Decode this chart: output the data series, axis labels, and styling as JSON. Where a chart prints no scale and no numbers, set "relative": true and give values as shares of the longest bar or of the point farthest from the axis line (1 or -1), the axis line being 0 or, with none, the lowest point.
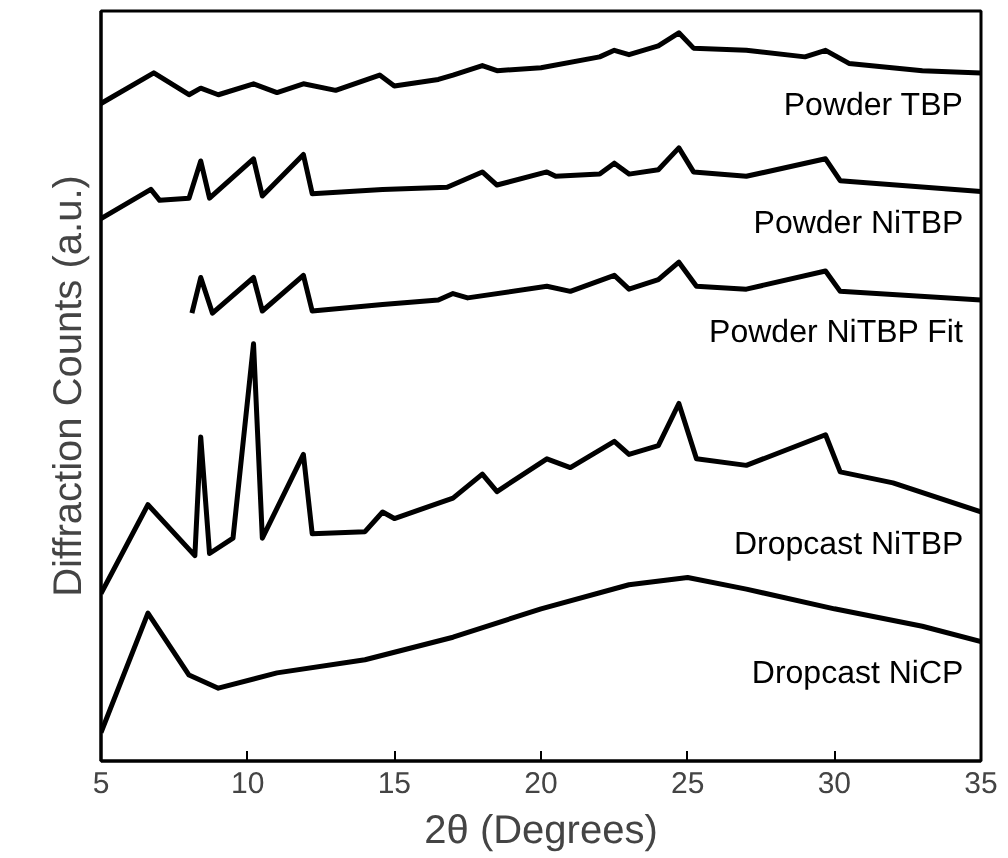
{
  "chart_data": {
    "type": "line",
    "relative": true,
    "xlabel": "2θ (Degrees)",
    "ylabel": "Diffraction Counts (a.u.)",
    "xlim": [
      5,
      35
    ],
    "xticks": [
      5,
      10,
      15,
      20,
      25,
      30,
      35
    ],
    "grid": false,
    "marker": "none",
    "line_style": "solid",
    "series": [
      {
        "name": "Powder TBP",
        "color": "#000000",
        "x": [
          5,
          6.8,
          8,
          8.4,
          9,
          10.2,
          11,
          11.9,
          13,
          14.5,
          15,
          16.5,
          17,
          18,
          18.5,
          20,
          22,
          22.5,
          23,
          24,
          24.7,
          25.2,
          27,
          29,
          29.7,
          30.5,
          33,
          35
        ],
        "values": [
          0.903,
          0.945,
          0.915,
          0.924,
          0.915,
          0.93,
          0.918,
          0.93,
          0.921,
          0.942,
          0.927,
          0.936,
          0.942,
          0.955,
          0.948,
          0.952,
          0.967,
          0.976,
          0.97,
          0.982,
          1.0,
          0.979,
          0.976,
          0.967,
          0.976,
          0.958,
          0.948,
          0.945
        ]
      },
      {
        "name": "Powder NiTBP",
        "color": "#000000",
        "x": [
          5,
          6.7,
          7,
          8,
          8.4,
          8.7,
          10.2,
          10.5,
          11.9,
          12.2,
          14.6,
          16.8,
          18,
          18.5,
          20.2,
          20.5,
          22,
          22.5,
          23,
          24,
          24.7,
          25.2,
          27,
          29.7,
          30.2,
          35
        ],
        "values": [
          0.745,
          0.785,
          0.77,
          0.773,
          0.824,
          0.773,
          0.827,
          0.776,
          0.833,
          0.779,
          0.785,
          0.788,
          0.809,
          0.791,
          0.809,
          0.803,
          0.806,
          0.821,
          0.806,
          0.812,
          0.842,
          0.809,
          0.803,
          0.827,
          0.797,
          0.782
        ]
      },
      {
        "name": "Powder NiTBP Fit",
        "color": "#000000",
        "x": [
          8.1,
          8.4,
          8.8,
          10.2,
          10.5,
          11.9,
          12.2,
          14.6,
          16.5,
          17,
          17.5,
          20.2,
          21,
          22.5,
          23,
          24,
          24.7,
          25.3,
          27,
          29.7,
          30.2,
          35
        ],
        "values": [
          0.615,
          0.664,
          0.615,
          0.664,
          0.618,
          0.667,
          0.618,
          0.627,
          0.633,
          0.642,
          0.636,
          0.652,
          0.645,
          0.667,
          0.648,
          0.661,
          0.685,
          0.652,
          0.648,
          0.673,
          0.645,
          0.633
        ]
      },
      {
        "name": "Dropcast NiTBP",
        "color": "#000000",
        "x": [
          5,
          6.6,
          8.2,
          8.4,
          8.7,
          9.5,
          10.2,
          10.5,
          11.9,
          12.2,
          14,
          14.6,
          15,
          17,
          18,
          18.5,
          20.2,
          21,
          22.5,
          23,
          24,
          24.7,
          25.3,
          27,
          29.7,
          30.2,
          32,
          35
        ],
        "values": [
          0.23,
          0.352,
          0.282,
          0.445,
          0.285,
          0.306,
          0.573,
          0.306,
          0.421,
          0.312,
          0.315,
          0.342,
          0.333,
          0.361,
          0.394,
          0.37,
          0.415,
          0.403,
          0.439,
          0.421,
          0.433,
          0.491,
          0.415,
          0.406,
          0.448,
          0.397,
          0.382,
          0.342
        ]
      },
      {
        "name": "Dropcast NiCP",
        "color": "#000000",
        "x": [
          5,
          6.6,
          8,
          9,
          11,
          14,
          17,
          20,
          23,
          25,
          27,
          30,
          33,
          35
        ],
        "values": [
          0.039,
          0.203,
          0.118,
          0.1,
          0.121,
          0.139,
          0.17,
          0.209,
          0.242,
          0.252,
          0.236,
          0.209,
          0.185,
          0.164
        ]
      }
    ]
  }
}
